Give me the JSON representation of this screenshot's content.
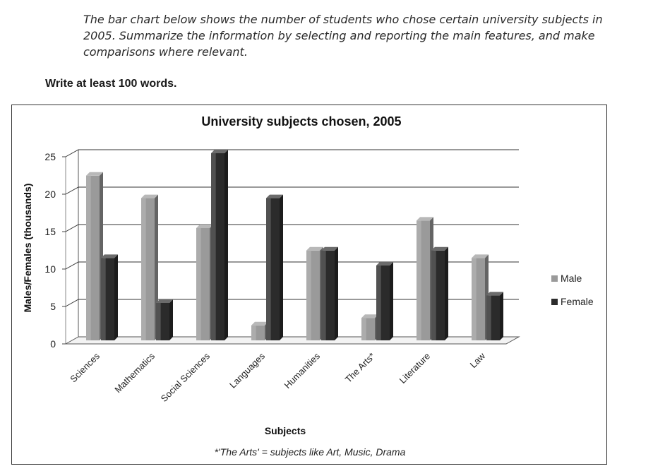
{
  "prompt_text": "The bar chart below shows the number of students who chose certain university subjects in 2005. Summarize the information by selecting and reporting the main features, and make comparisons where relevant.",
  "instruction": "Write at least 100 words.",
  "chart_data": {
    "type": "bar",
    "title": "University subjects chosen, 2005",
    "xlabel": "Subjects",
    "ylabel": "Males/Females (thousands)",
    "ylim": [
      0,
      25
    ],
    "yticks": [
      "0",
      "5",
      "10",
      "15",
      "20",
      "25"
    ],
    "categories": [
      "Sciences",
      "Mathematics",
      "Social Sciences",
      "Languages",
      "Humanities",
      "The Arts*",
      "Literature",
      "Law"
    ],
    "series": [
      {
        "name": "Male",
        "values": [
          22,
          19,
          15,
          2,
          12,
          3,
          16,
          11
        ]
      },
      {
        "name": "Female",
        "values": [
          11,
          5,
          25,
          19,
          12,
          10,
          12,
          6
        ]
      }
    ],
    "footnote": "*'The Arts' = subjects like Art, Music, Drama",
    "legend_position": "right",
    "grid": true,
    "colors": {
      "Male": "#9a9a9a",
      "Female": "#2b2b2b"
    }
  }
}
